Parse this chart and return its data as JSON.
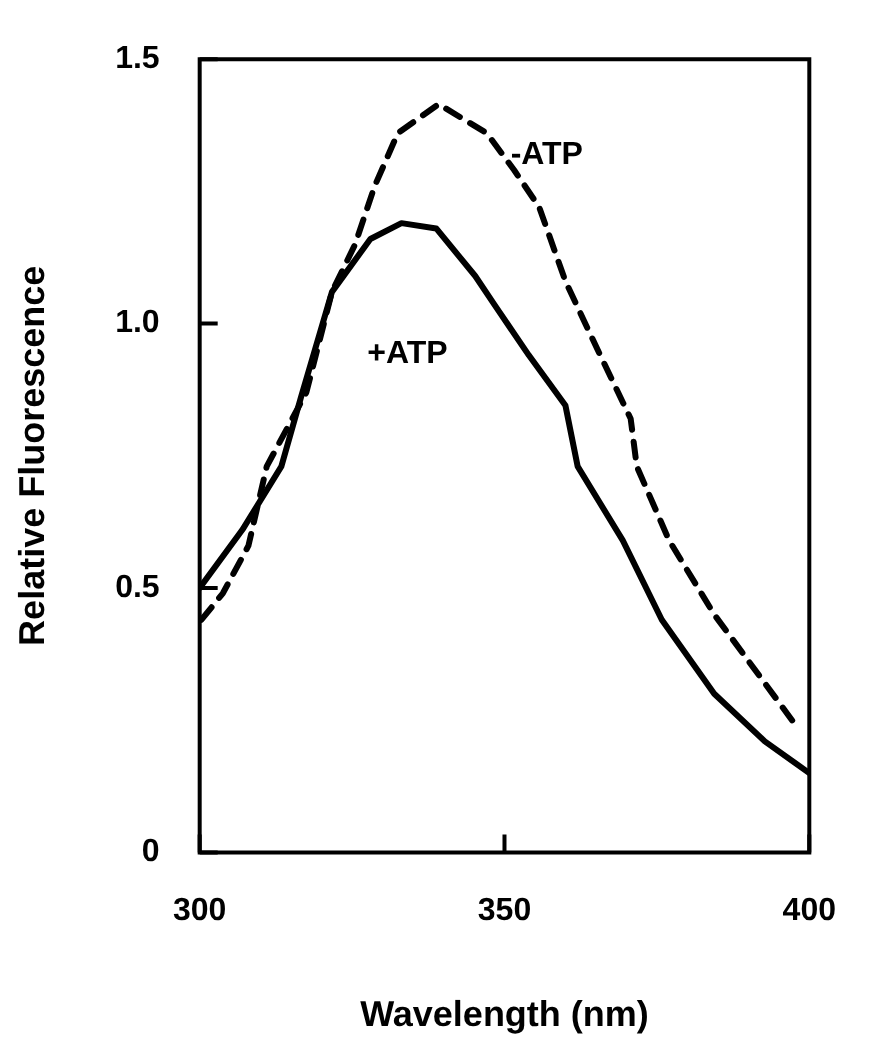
{
  "chart_data": {
    "type": "line",
    "xlabel": "Wavelength (nm)",
    "ylabel": "Relative Fluorescence",
    "xlim": [
      300,
      400
    ],
    "xticks": [
      300,
      350,
      400
    ],
    "ylim": [
      0,
      1.5
    ],
    "yticks": [
      0,
      0.5,
      {
        "value": 1,
        "label": "1.0"
      },
      1.5
    ],
    "grid": false,
    "legend": false,
    "marker": "none",
    "series": [
      {
        "name": "+ATP",
        "color": "#000000",
        "line_style": "solid",
        "x": [
          300,
          307,
          313.4,
          316.6,
          321.7,
          328,
          333.1,
          338.8,
          345.2,
          348.4,
          354,
          360,
          362,
          369.4,
          375.8,
          384.4,
          392.7,
          400
        ],
        "values": [
          0.5,
          0.61,
          0.73,
          0.86,
          1.06,
          1.16,
          1.19,
          1.18,
          1.09,
          1.035,
          0.94,
          0.845,
          0.73,
          0.59,
          0.44,
          0.3,
          0.21,
          0.15
        ]
      },
      {
        "name": "-ATP",
        "color": "#000000",
        "line_style": "dashed",
        "x": [
          300.3,
          303.8,
          308,
          311,
          317.5,
          321.7,
          325.5,
          328.7,
          332.5,
          339.2,
          347.1,
          351.6,
          355.7,
          360,
          365.3,
          370.7,
          371.7,
          377,
          384.4,
          392.7,
          397.8
        ],
        "values": [
          0.44,
          0.49,
          0.58,
          0.73,
          0.87,
          1.06,
          1.15,
          1.26,
          1.36,
          1.415,
          1.36,
          1.29,
          1.22,
          1.08,
          0.95,
          0.82,
          0.73,
          0.59,
          0.45,
          0.32,
          0.24
        ]
      }
    ]
  }
}
